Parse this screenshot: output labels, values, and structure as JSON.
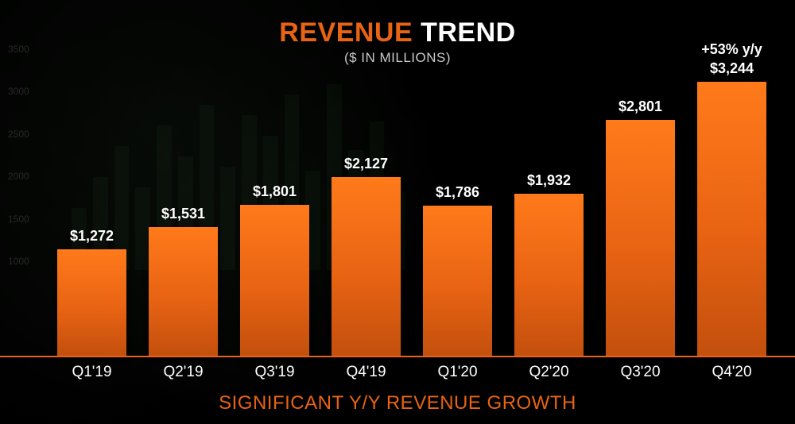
{
  "slide": {
    "title_accent": "REVENUE",
    "title_rest": "TREND",
    "subtitle": "($ IN MILLIONS)",
    "footer": "SIGNIFICANT Y/Y REVENUE GROWTH"
  },
  "chart": {
    "type": "bar",
    "background_color": "#000000",
    "accent_color": "#e86313",
    "bar_gradient": {
      "top": "#ff7a1a",
      "mid": "#e86313",
      "bottom": "#c24f0d"
    },
    "text_color": "#ffffff",
    "subtext_color": "#c9c9c9",
    "ytick_color": "rgba(255,255,255,0.14)",
    "value_fontsize": 18,
    "xlabel_fontsize": 19,
    "title_fontsize": 34,
    "subtitle_fontsize": 17,
    "footer_fontsize": 24,
    "growth_fontsize": 18,
    "bar_width_pct": 76,
    "ylim": [
      0,
      3500
    ],
    "yticks": [
      1000,
      1500,
      2000,
      2500,
      3000,
      3500
    ],
    "categories": [
      "Q1'19",
      "Q2'19",
      "Q3'19",
      "Q4'19",
      "Q1'20",
      "Q2'20",
      "Q3'20",
      "Q4'20"
    ],
    "values": [
      1272,
      1531,
      1801,
      2127,
      1786,
      1932,
      2801,
      3244
    ],
    "value_labels": [
      "$1,272",
      "$1,531",
      "$1,801",
      "$2,127",
      "$1,786",
      "$1,932",
      "$2,801",
      "$3,244"
    ],
    "growth_badges": [
      null,
      null,
      null,
      null,
      null,
      null,
      null,
      "+53% y/y"
    ]
  }
}
